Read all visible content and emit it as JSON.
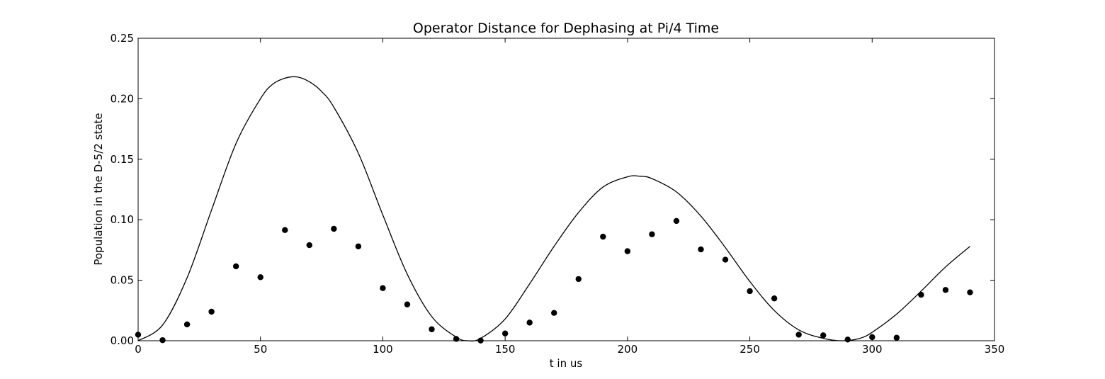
{
  "chart_data": {
    "type": "scatter",
    "title": "Operator Distance for Dephasing at Pi/4 Time",
    "xlabel": "t in us",
    "ylabel": "Population in the D-5/2 state",
    "xlim": [
      0,
      350
    ],
    "ylim": [
      0,
      0.25
    ],
    "xticks": [
      "0",
      "50",
      "100",
      "150",
      "200",
      "250",
      "300",
      "350"
    ],
    "yticks": [
      "0.00",
      "0.05",
      "0.10",
      "0.15",
      "0.20",
      "0.25"
    ],
    "grid": false,
    "legend": "none",
    "series": [
      {
        "kind": "markers",
        "color": "#000000",
        "x": [
          0,
          10,
          20,
          30,
          40,
          50,
          60,
          70,
          80,
          90,
          100,
          110,
          120,
          130,
          140,
          150,
          160,
          170,
          180,
          190,
          200,
          210,
          220,
          230,
          240,
          250,
          260,
          270,
          280,
          290,
          300,
          310,
          320,
          330,
          340
        ],
        "y": [
          0.005,
          0.0005,
          0.0135,
          0.024,
          0.0615,
          0.0525,
          0.0915,
          0.079,
          0.0925,
          0.078,
          0.0435,
          0.03,
          0.0095,
          0.0015,
          0.0002,
          0.006,
          0.015,
          0.023,
          0.051,
          0.086,
          0.074,
          0.088,
          0.099,
          0.0755,
          0.067,
          0.041,
          0.035,
          0.005,
          0.0045,
          0.001,
          0.003,
          0.0025,
          0.038,
          0.042,
          0.04
        ]
      },
      {
        "kind": "line",
        "color": "#000000",
        "x": [
          0,
          10,
          20,
          30,
          40,
          50,
          55,
          60,
          65,
          70,
          75,
          80,
          90,
          100,
          110,
          120,
          130,
          135,
          140,
          150,
          160,
          170,
          180,
          190,
          200,
          205,
          210,
          220,
          230,
          240,
          250,
          260,
          270,
          280,
          288,
          295,
          300,
          310,
          320,
          330,
          340
        ],
        "y": [
          0.0,
          0.013,
          0.052,
          0.108,
          0.163,
          0.2,
          0.212,
          0.217,
          0.218,
          0.214,
          0.206,
          0.193,
          0.155,
          0.104,
          0.055,
          0.02,
          0.003,
          0.0,
          0.002,
          0.018,
          0.047,
          0.078,
          0.106,
          0.127,
          0.1355,
          0.136,
          0.134,
          0.123,
          0.103,
          0.077,
          0.049,
          0.025,
          0.009,
          0.002,
          0.0,
          0.002,
          0.007,
          0.022,
          0.041,
          0.061,
          0.078
        ]
      }
    ]
  }
}
